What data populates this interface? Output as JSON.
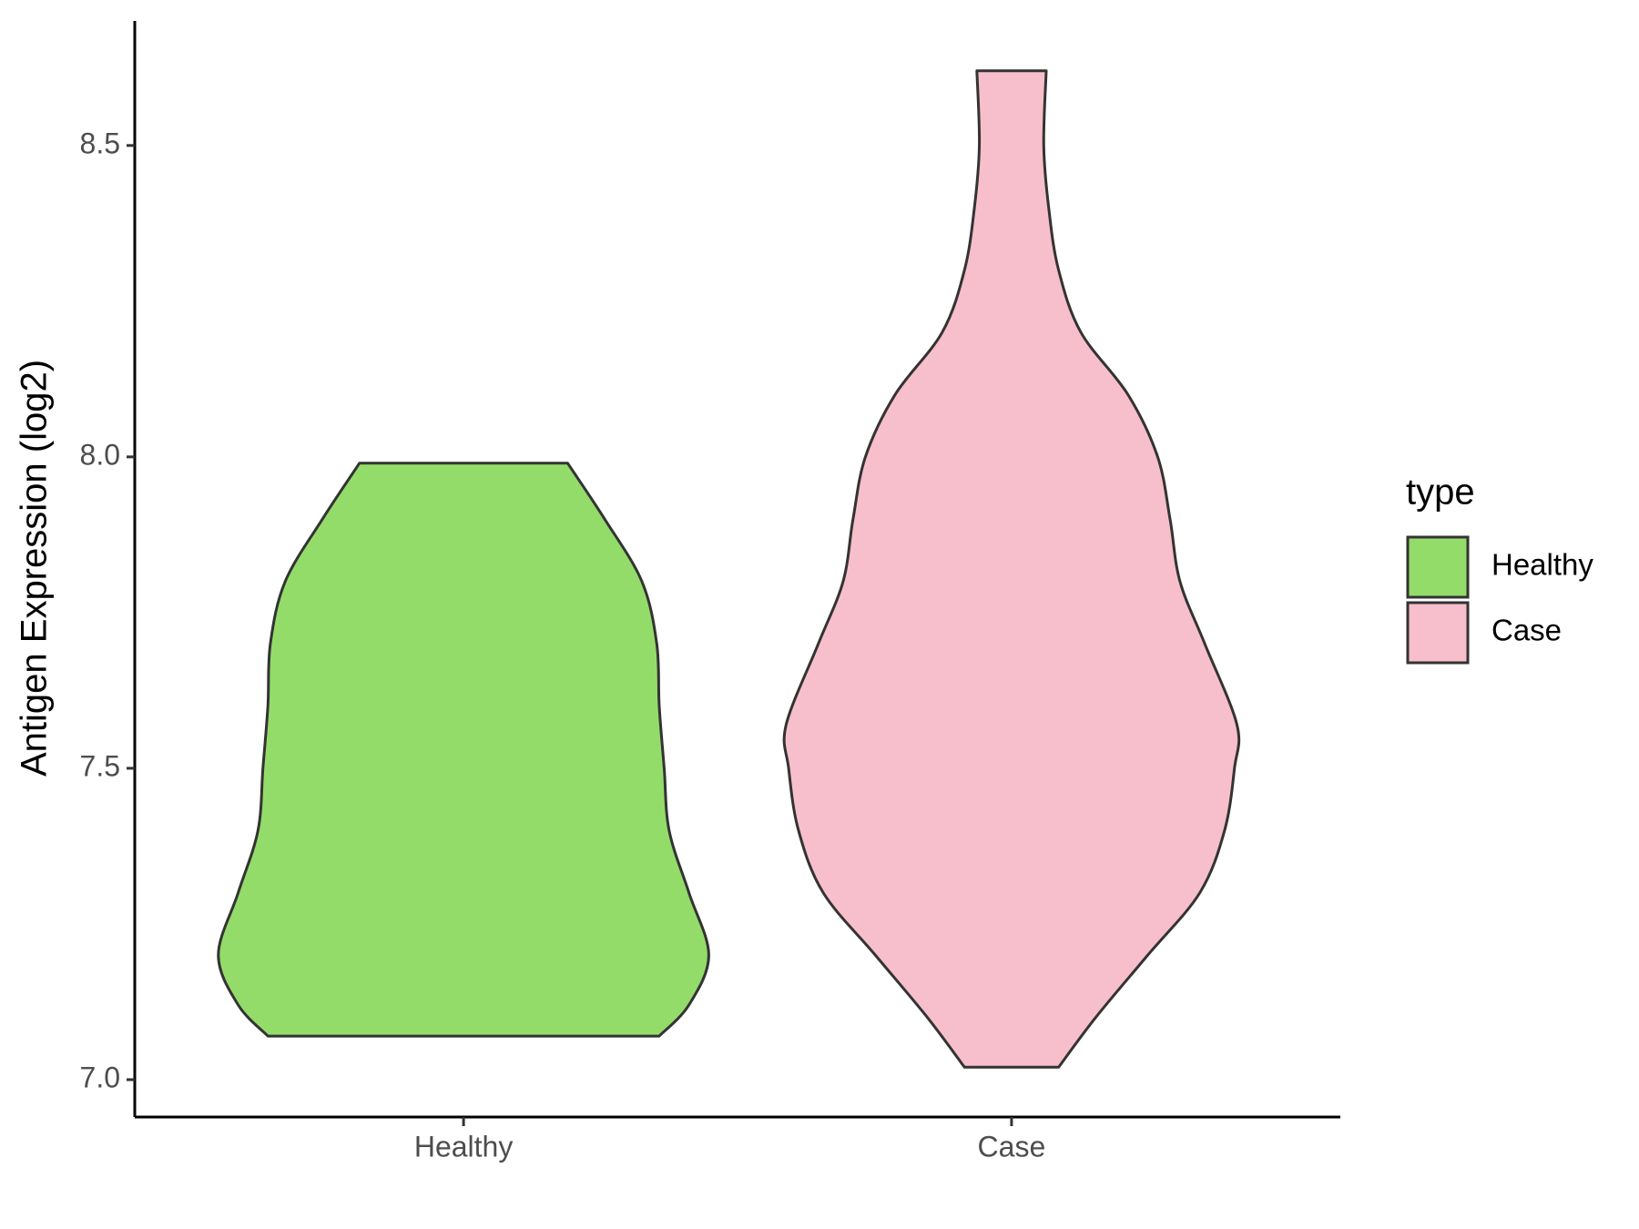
{
  "chart_data": {
    "type": "violin",
    "y_label": "Antigen Expression (log2)",
    "categories": [
      "Healthy",
      "Case"
    ],
    "series": [
      {
        "name": "Healthy",
        "color": "#93dc6a",
        "y": [
          7.07,
          7.12,
          7.2,
          7.3,
          7.4,
          7.5,
          7.6,
          7.7,
          7.8,
          7.9,
          7.99
        ],
        "density": [
          0.79,
          0.91,
          0.99,
          0.91,
          0.83,
          0.81,
          0.79,
          0.78,
          0.72,
          0.57,
          0.42
        ]
      },
      {
        "name": "Case",
        "color": "#f7bfcb",
        "y": [
          7.02,
          7.1,
          7.2,
          7.3,
          7.4,
          7.5,
          7.57,
          7.7,
          7.8,
          7.9,
          8.0,
          8.1,
          8.2,
          8.3,
          8.4,
          8.5,
          8.62
        ],
        "density": [
          0.19,
          0.34,
          0.55,
          0.76,
          0.86,
          0.9,
          0.91,
          0.78,
          0.68,
          0.64,
          0.59,
          0.47,
          0.28,
          0.19,
          0.15,
          0.13,
          0.14
        ]
      }
    ],
    "ylim": [
      6.94,
      8.7
    ],
    "yticks": [
      {
        "value": 7,
        "label": "7.0"
      },
      7.5,
      {
        "value": 8,
        "label": "8.0"
      },
      8.5
    ],
    "legend_title": "type",
    "legend": "right"
  }
}
